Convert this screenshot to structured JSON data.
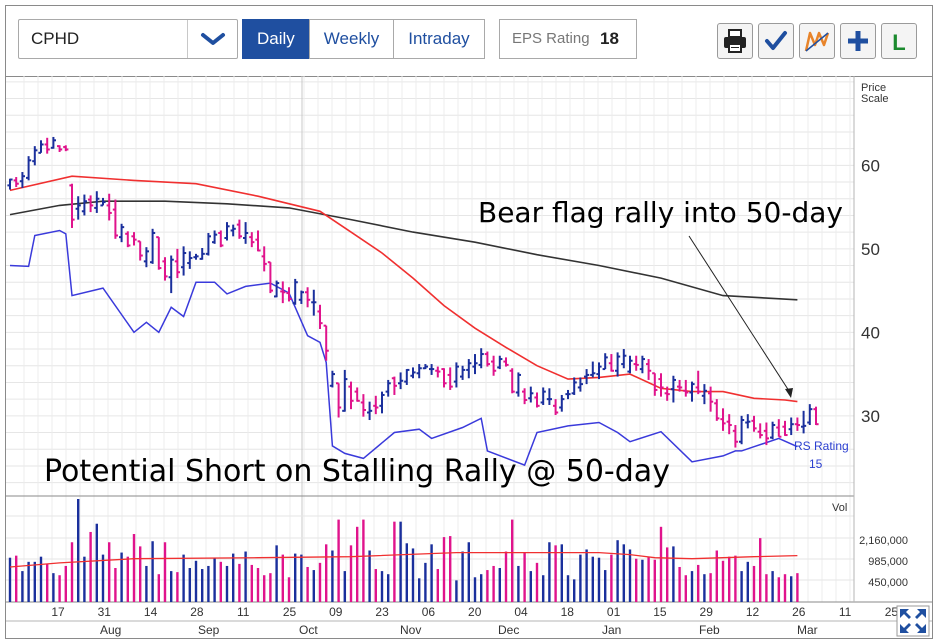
{
  "toolbar": {
    "symbol": "CPHD",
    "tabs": [
      "Daily",
      "Weekly",
      "Intraday"
    ],
    "active_tab": "Daily",
    "eps_label": "EPS Rating",
    "eps_value": "18",
    "icons": [
      "printer-icon",
      "checkmark-icon",
      "pattern-icon",
      "plus-icon",
      "leaderboard-icon"
    ]
  },
  "colors": {
    "accent": "#1f4fa0",
    "up_bar": "#1a2f9c",
    "down_bar": "#e0138c",
    "ma50": "#f03030",
    "ma200": "#333333",
    "rs_line": "#3a3adb"
  },
  "annotations": {
    "bear_flag": "Bear flag rally into 50-day",
    "short": "Potential Short on Stalling Rally @ 50-day"
  },
  "chart_data": {
    "type": "line",
    "price_axis_title": [
      "Price",
      "Scale"
    ],
    "y_ticks": [
      "60",
      "50",
      "40",
      "30"
    ],
    "ylim": [
      20.4,
      70.7
    ],
    "rs_rating_label": "RS Rating",
    "rs_rating_value": "15",
    "volume_axis_title": "Vol",
    "volume_ticks": [
      "2,160,000",
      "985,000",
      "450,000"
    ],
    "x_ticks": [
      "17",
      "31",
      "14",
      "28",
      "11",
      "25",
      "09",
      "23",
      "06",
      "20",
      "04",
      "18",
      "01",
      "15",
      "29",
      "12",
      "26",
      "11",
      "25"
    ],
    "month_labels": [
      "Aug",
      "Sep",
      "Oct",
      "Nov",
      "Dec",
      "Jan",
      "Feb",
      "Mar"
    ],
    "ma50": [
      [
        0,
        57.0
      ],
      [
        10,
        58.7
      ],
      [
        20,
        58.2
      ],
      [
        30,
        57.8
      ],
      [
        40,
        56.3
      ],
      [
        50,
        54.5
      ],
      [
        55,
        52.0
      ],
      [
        60,
        49.5
      ],
      [
        65,
        46.5
      ],
      [
        70,
        43.2
      ],
      [
        75,
        40.5
      ],
      [
        80,
        38.2
      ],
      [
        85,
        36.0
      ],
      [
        90,
        34.4
      ],
      [
        95,
        34.6
      ],
      [
        100,
        35.0
      ],
      [
        105,
        33.3
      ],
      [
        110,
        32.9
      ],
      [
        115,
        32.9
      ],
      [
        120,
        32.1
      ],
      [
        125,
        31.9
      ],
      [
        127,
        31.7
      ]
    ],
    "ma200": [
      [
        0,
        54.1
      ],
      [
        8,
        55.2
      ],
      [
        15,
        55.7
      ],
      [
        25,
        55.7
      ],
      [
        35,
        55.4
      ],
      [
        45,
        54.9
      ],
      [
        55,
        53.5
      ],
      [
        65,
        52.0
      ],
      [
        75,
        50.8
      ],
      [
        85,
        49.3
      ],
      [
        95,
        48.0
      ],
      [
        105,
        46.5
      ],
      [
        115,
        44.4
      ],
      [
        127,
        43.9
      ]
    ],
    "rs_line": [
      [
        0,
        48.0
      ],
      [
        3,
        47.9
      ],
      [
        4,
        51.6
      ],
      [
        8,
        52.2
      ],
      [
        9,
        51.8
      ],
      [
        10,
        44.4
      ],
      [
        15,
        45.3
      ],
      [
        20,
        40.0
      ],
      [
        22,
        41.2
      ],
      [
        24,
        40.0
      ],
      [
        26,
        43.0
      ],
      [
        28,
        41.9
      ],
      [
        30,
        46.0
      ],
      [
        33,
        46.0
      ],
      [
        35,
        44.6
      ],
      [
        38,
        45.5
      ],
      [
        42,
        45.9
      ],
      [
        45,
        44.7
      ],
      [
        48,
        39.6
      ],
      [
        50,
        38.8
      ],
      [
        51,
        36.4
      ],
      [
        52,
        26.4
      ],
      [
        54,
        25.5
      ],
      [
        57,
        24.9
      ],
      [
        62,
        28.0
      ],
      [
        66,
        28.4
      ],
      [
        68,
        27.3
      ],
      [
        73,
        28.6
      ],
      [
        76,
        29.7
      ],
      [
        77,
        25.8
      ],
      [
        83,
        24.1
      ],
      [
        85,
        28.0
      ],
      [
        90,
        28.8
      ],
      [
        95,
        29.2
      ],
      [
        98,
        28.0
      ],
      [
        100,
        26.9
      ],
      [
        105,
        28.1
      ],
      [
        110,
        24.5
      ],
      [
        115,
        25.2
      ],
      [
        117,
        25.8
      ],
      [
        118,
        25.8
      ],
      [
        120,
        26.3
      ],
      [
        124,
        27.3
      ],
      [
        127,
        26.3
      ]
    ],
    "price_bars": [
      [
        57.1,
        58.4,
        57.6,
        58.3
      ],
      [
        57.4,
        58.6,
        58.2,
        57.8
      ],
      [
        57.3,
        59.2,
        58.1,
        58.7
      ],
      [
        58.2,
        61.1,
        58.5,
        60.6
      ],
      [
        60.0,
        62.3,
        60.5,
        61.8
      ],
      [
        61.5,
        63.0,
        61.5,
        62.5
      ],
      [
        61.4,
        63.3,
        62.5,
        61.9
      ],
      [
        62.0,
        63.4,
        62.1,
        63.0
      ],
      [
        61.6,
        62.4,
        62.3,
        61.9
      ],
      [
        61.7,
        62.4,
        62.2,
        61.9
      ],
      [
        52.5,
        57.8,
        57.6,
        53.5
      ],
      [
        53.5,
        56.3,
        54.8,
        55.2
      ],
      [
        54.0,
        56.5,
        54.5,
        55.7
      ],
      [
        54.4,
        56.4,
        55.9,
        55.2
      ],
      [
        54.3,
        56.9,
        54.9,
        56.0
      ],
      [
        55.2,
        56.1,
        55.2,
        55.6
      ],
      [
        53.4,
        56.6,
        55.2,
        54.3
      ],
      [
        51.2,
        55.9,
        54.7,
        51.6
      ],
      [
        50.8,
        53.0,
        51.4,
        52.6
      ],
      [
        50.2,
        52.1,
        51.8,
        50.4
      ],
      [
        50.4,
        52.0,
        51.5,
        51.1
      ],
      [
        48.6,
        50.9,
        50.9,
        49.2
      ],
      [
        47.8,
        50.2,
        48.5,
        49.7
      ],
      [
        48.2,
        52.4,
        48.4,
        51.9
      ],
      [
        47.5,
        51.4,
        51.4,
        47.7
      ],
      [
        46.2,
        49.0,
        48.5,
        46.7
      ],
      [
        44.7,
        49.2,
        46.6,
        48.7
      ],
      [
        46.5,
        50.0,
        48.5,
        47.2
      ],
      [
        46.8,
        50.3,
        47.8,
        49.5
      ],
      [
        47.6,
        49.7,
        48.3,
        48.9
      ],
      [
        48.7,
        49.4,
        49.0,
        49.1
      ],
      [
        48.7,
        50.1,
        48.8,
        49.4
      ],
      [
        49.2,
        51.9,
        49.4,
        51.5
      ],
      [
        50.6,
        52.2,
        50.8,
        51.7
      ],
      [
        50.2,
        52.2,
        51.9,
        50.4
      ],
      [
        51.0,
        53.2,
        51.3,
        52.7
      ],
      [
        51.5,
        52.9,
        52.2,
        52.4
      ],
      [
        51.2,
        53.5,
        52.9,
        51.5
      ],
      [
        50.6,
        53.2,
        51.3,
        51.9
      ],
      [
        50.2,
        52.0,
        51.4,
        50.8
      ],
      [
        49.7,
        52.2,
        51.1,
        49.8
      ],
      [
        47.3,
        50.3,
        49.1,
        48.2
      ],
      [
        44.7,
        48.4,
        48.4,
        45.0
      ],
      [
        44.2,
        46.2,
        44.3,
        45.9
      ],
      [
        43.5,
        46.1,
        44.9,
        44.8
      ],
      [
        43.7,
        45.4,
        44.7,
        44.0
      ],
      [
        43.3,
        46.4,
        43.5,
        46.0
      ],
      [
        43.4,
        45.0,
        43.9,
        44.8
      ],
      [
        43.0,
        45.4,
        44.8,
        43.9
      ],
      [
        42.0,
        45.1,
        43.6,
        43.6
      ],
      [
        40.4,
        43.3,
        42.5,
        41.1
      ],
      [
        36.6,
        40.8,
        40.8,
        37.8
      ],
      [
        33.4,
        35.4,
        33.6,
        35.0
      ],
      [
        29.8,
        33.9,
        33.9,
        31.0
      ],
      [
        30.5,
        35.5,
        30.6,
        34.4
      ],
      [
        30.8,
        34.1,
        33.5,
        31.8
      ],
      [
        31.7,
        33.4,
        32.9,
        31.8
      ],
      [
        29.9,
        32.6,
        31.6,
        30.7
      ],
      [
        29.5,
        31.7,
        30.4,
        30.6
      ],
      [
        30.2,
        32.4,
        31.2,
        31.0
      ],
      [
        30.3,
        32.9,
        31.2,
        32.5
      ],
      [
        32.3,
        34.3,
        32.9,
        33.9
      ],
      [
        32.5,
        34.7,
        34.5,
        33.6
      ],
      [
        33.2,
        35.2,
        33.9,
        34.2
      ],
      [
        33.7,
        35.6,
        34.1,
        35.5
      ],
      [
        34.5,
        35.8,
        34.8,
        35.2
      ],
      [
        34.5,
        36.2,
        35.1,
        35.7
      ],
      [
        35.6,
        36.2,
        35.7,
        35.9
      ],
      [
        34.9,
        36.2,
        35.6,
        35.6
      ],
      [
        34.6,
        35.9,
        35.4,
        35.3
      ],
      [
        33.4,
        35.7,
        35.6,
        33.9
      ],
      [
        33.1,
        35.8,
        34.9,
        33.5
      ],
      [
        33.4,
        36.4,
        34.1,
        35.9
      ],
      [
        34.3,
        36.0,
        34.7,
        35.5
      ],
      [
        34.5,
        36.8,
        35.5,
        36.3
      ],
      [
        35.0,
        37.4,
        35.9,
        36.3
      ],
      [
        35.7,
        38.1,
        36.1,
        37.4
      ],
      [
        35.9,
        37.7,
        37.4,
        36.2
      ],
      [
        34.8,
        37.2,
        36.5,
        35.4
      ],
      [
        35.6,
        37.2,
        35.8,
        36.8
      ],
      [
        35.9,
        37.0,
        36.5,
        36.1
      ],
      [
        32.7,
        35.7,
        35.4,
        32.9
      ],
      [
        32.3,
        35.2,
        32.8,
        34.9
      ],
      [
        31.4,
        33.3,
        32.9,
        31.9
      ],
      [
        31.6,
        33.5,
        32.1,
        32.7
      ],
      [
        31.0,
        32.8,
        32.2,
        31.2
      ],
      [
        31.3,
        33.4,
        31.6,
        32.9
      ],
      [
        31.3,
        33.3,
        32.0,
        32.0
      ],
      [
        30.1,
        32.0,
        31.2,
        30.4
      ],
      [
        30.5,
        32.5,
        31.0,
        32.0
      ],
      [
        32.0,
        33.1,
        32.6,
        32.6
      ],
      [
        32.5,
        34.6,
        32.7,
        34.0
      ],
      [
        32.9,
        34.6,
        33.4,
        33.8
      ],
      [
        33.8,
        35.6,
        34.7,
        34.9
      ],
      [
        34.6,
        36.5,
        34.9,
        35.1
      ],
      [
        34.4,
        36.4,
        35.0,
        35.9
      ],
      [
        35.6,
        37.5,
        35.6,
        37.0
      ],
      [
        35.3,
        37.4,
        36.3,
        35.4
      ],
      [
        34.7,
        37.6,
        35.4,
        37.1
      ],
      [
        35.7,
        38.0,
        36.2,
        37.2
      ],
      [
        35.1,
        37.2,
        35.3,
        36.6
      ],
      [
        35.4,
        37.2,
        36.2,
        36.1
      ],
      [
        35.1,
        37.2,
        35.6,
        36.8
      ],
      [
        34.3,
        36.8,
        36.2,
        35.4
      ],
      [
        32.4,
        35.1,
        35.1,
        33.1
      ],
      [
        32.3,
        35.1,
        34.4,
        33.4
      ],
      [
        31.8,
        33.5,
        32.7,
        32.6
      ],
      [
        31.6,
        34.8,
        33.2,
        34.3
      ],
      [
        32.9,
        34.3,
        33.5,
        33.4
      ],
      [
        32.3,
        34.3,
        33.0,
        32.8
      ],
      [
        31.7,
        34.1,
        32.8,
        33.8
      ],
      [
        32.6,
        35.4,
        33.4,
        32.9
      ],
      [
        31.4,
        33.8,
        32.4,
        33.0
      ],
      [
        30.5,
        33.5,
        32.7,
        31.7
      ],
      [
        29.4,
        32.0,
        31.5,
        29.7
      ],
      [
        28.2,
        30.9,
        29.6,
        29.1
      ],
      [
        27.8,
        30.2,
        29.3,
        28.9
      ],
      [
        26.2,
        28.9,
        28.2,
        26.9
      ],
      [
        26.6,
        30.0,
        26.9,
        29.5
      ],
      [
        28.5,
        30.2,
        29.2,
        29.3
      ],
      [
        28.1,
        30.0,
        29.4,
        28.5
      ],
      [
        27.3,
        29.1,
        28.1,
        27.7
      ],
      [
        26.5,
        29.2,
        28.2,
        27.3
      ],
      [
        27.2,
        29.3,
        27.4,
        28.9
      ],
      [
        27.5,
        29.6,
        28.6,
        27.5
      ],
      [
        27.6,
        29.4,
        28.7,
        27.7
      ],
      [
        27.7,
        29.8,
        28.4,
        29.0
      ],
      [
        28.2,
        29.8,
        29.0,
        28.9
      ],
      [
        27.9,
        30.6,
        28.7,
        28.8
      ],
      [
        28.9,
        31.4,
        29.2,
        30.8
      ],
      [
        28.9,
        31.1,
        30.8,
        29.0
      ]
    ],
    "volume": [
      0.43,
      0.45,
      0.3,
      0.39,
      0.39,
      0.44,
      0.37,
      0.28,
      0.26,
      0.35,
      0.58,
      1.0,
      0.44,
      0.68,
      0.76,
      0.46,
      0.58,
      0.33,
      0.48,
      0.44,
      0.66,
      0.54,
      0.35,
      0.59,
      0.27,
      0.58,
      0.3,
      0.29,
      0.46,
      0.33,
      0.4,
      0.32,
      0.35,
      0.43,
      0.39,
      0.35,
      0.47,
      0.37,
      0.49,
      0.36,
      0.33,
      0.26,
      0.28,
      0.55,
      0.46,
      0.24,
      0.47,
      0.46,
      0.34,
      0.31,
      0.38,
      0.56,
      0.5,
      0.8,
      0.3,
      0.55,
      0.73,
      0.8,
      0.5,
      0.32,
      0.3,
      0.27,
      0.78,
      0.78,
      0.57,
      0.52,
      0.23,
      0.38,
      0.56,
      0.32,
      0.63,
      0.64,
      0.21,
      0.49,
      0.58,
      0.24,
      0.27,
      0.31,
      0.35,
      0.33,
      0.49,
      0.8,
      0.35,
      0.48,
      0.3,
      0.38,
      0.26,
      0.58,
      0.55,
      0.56,
      0.26,
      0.22,
      0.46,
      0.51,
      0.44,
      0.43,
      0.31,
      0.46,
      0.6,
      0.56,
      0.51,
      0.42,
      0.41,
      0.44,
      0.41,
      0.73,
      0.53,
      0.54,
      0.34,
      0.26,
      0.3,
      0.36,
      0.27,
      0.28,
      0.5,
      0.4,
      0.44,
      0.45,
      0.3,
      0.39,
      0.35,
      0.62,
      0.27,
      0.3,
      0.24,
      0.27,
      0.25,
      0.28
    ],
    "volume_avg": [
      [
        0,
        0.34
      ],
      [
        8,
        0.38
      ],
      [
        20,
        0.42
      ],
      [
        40,
        0.43
      ],
      [
        55,
        0.44
      ],
      [
        72,
        0.48
      ],
      [
        86,
        0.48
      ],
      [
        95,
        0.48
      ],
      [
        100,
        0.46
      ],
      [
        104,
        0.43
      ],
      [
        110,
        0.42
      ],
      [
        120,
        0.44
      ],
      [
        127,
        0.45
      ]
    ]
  }
}
